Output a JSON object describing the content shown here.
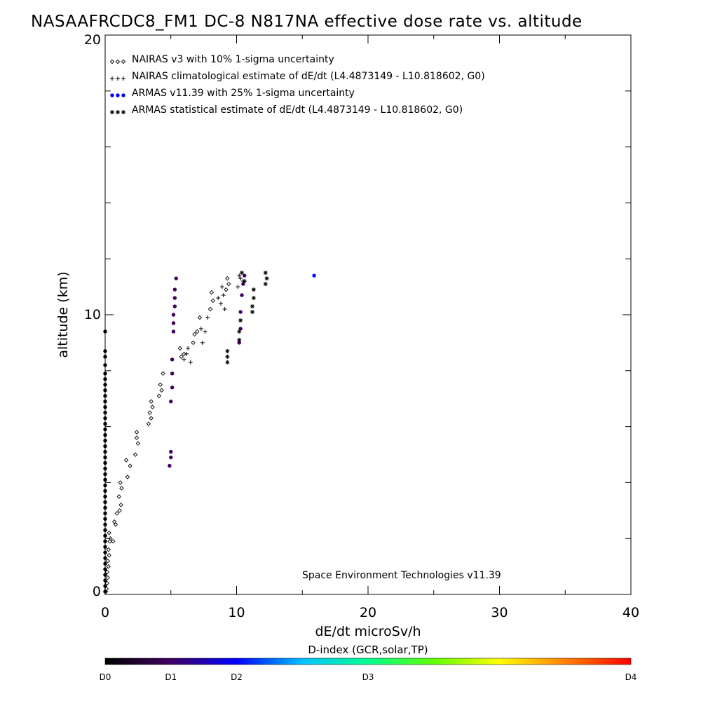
{
  "chart_data": {
    "type": "scatter",
    "title": "NASAAFRCDC8_FM1 DC-8   N817NA effective dose rate vs. altitude",
    "xlabel": "dE/dt microSv/h",
    "ylabel": "altitude (km)",
    "xlim": [
      0,
      40
    ],
    "ylim": [
      0,
      20
    ],
    "x_ticks": [
      "0",
      "10",
      "20",
      "30",
      "40"
    ],
    "y_ticks": [
      "0",
      "10",
      "20"
    ],
    "legend_placement": "top-left",
    "credit": "Space Environment Technologies v11.39",
    "colorbar": {
      "title": "D-index (GCR,solar,TP)",
      "labels": [
        {
          "text": "D0",
          "value": 0
        },
        {
          "text": "D1",
          "value": 0.25
        },
        {
          "text": "D2",
          "value": 0.5
        },
        {
          "text": "D3",
          "value": 1.0
        },
        {
          "text": "D4",
          "value": 2.0
        }
      ],
      "stops": [
        "#000000",
        "#400060",
        "#0000ff",
        "#00c0ff",
        "#00ff90",
        "#60ff00",
        "#ffff00",
        "#ff8000",
        "#ff0000"
      ]
    },
    "series": [
      {
        "name": "NAIRAS v3 with 10% 1-sigma uncertainty",
        "marker": "diamond",
        "color": "#000000",
        "points": [
          [
            0.05,
            0.1
          ],
          [
            0.1,
            0.2
          ],
          [
            0.15,
            0.4
          ],
          [
            0.2,
            0.6
          ],
          [
            0.15,
            0.8
          ],
          [
            0.25,
            1.0
          ],
          [
            0.2,
            1.2
          ],
          [
            0.3,
            1.4
          ],
          [
            0.25,
            1.6
          ],
          [
            0.35,
            1.9
          ],
          [
            0.4,
            2.0
          ],
          [
            0.3,
            2.2
          ],
          [
            0.8,
            2.5
          ],
          [
            0.7,
            2.6
          ],
          [
            0.9,
            2.9
          ],
          [
            0.6,
            1.9
          ],
          [
            1.1,
            3.0
          ],
          [
            1.2,
            3.2
          ],
          [
            1.05,
            3.5
          ],
          [
            1.25,
            3.8
          ],
          [
            1.15,
            4.0
          ],
          [
            1.7,
            4.2
          ],
          [
            1.9,
            4.6
          ],
          [
            1.6,
            4.8
          ],
          [
            2.3,
            5.0
          ],
          [
            2.5,
            5.4
          ],
          [
            2.4,
            5.6
          ],
          [
            2.4,
            5.8
          ],
          [
            3.3,
            6.1
          ],
          [
            3.5,
            6.3
          ],
          [
            3.4,
            6.5
          ],
          [
            3.6,
            6.7
          ],
          [
            3.5,
            6.9
          ],
          [
            4.1,
            7.1
          ],
          [
            4.3,
            7.3
          ],
          [
            4.2,
            7.5
          ],
          [
            4.4,
            7.9
          ],
          [
            5.8,
            8.5
          ],
          [
            6.0,
            8.6
          ],
          [
            5.7,
            8.8
          ],
          [
            6.7,
            9.0
          ],
          [
            6.8,
            9.3
          ],
          [
            7.0,
            9.4
          ],
          [
            7.2,
            9.9
          ],
          [
            8.0,
            10.2
          ],
          [
            8.2,
            10.5
          ],
          [
            8.1,
            10.8
          ],
          [
            9.2,
            10.9
          ],
          [
            9.4,
            11.1
          ],
          [
            9.3,
            11.3
          ]
        ]
      },
      {
        "name": "NAIRAS climatological estimate of dE/dt (L4.4873149 - L10.818602, G0)",
        "marker": "plus",
        "color": "#000000",
        "points": [
          [
            6.0,
            8.4
          ],
          [
            6.2,
            8.6
          ],
          [
            6.5,
            8.3
          ],
          [
            6.3,
            8.8
          ],
          [
            7.4,
            9.0
          ],
          [
            7.6,
            9.4
          ],
          [
            7.3,
            9.5
          ],
          [
            7.8,
            9.9
          ],
          [
            8.6,
            10.6
          ],
          [
            8.8,
            10.4
          ],
          [
            8.9,
            11.0
          ],
          [
            9.1,
            10.2
          ],
          [
            9.0,
            10.7
          ],
          [
            10.1,
            11.0
          ],
          [
            10.3,
            11.3
          ],
          [
            10.5,
            11.2
          ],
          [
            10.2,
            11.4
          ]
        ]
      },
      {
        "name": "ARMAS v11.39 with 25% 1-sigma uncertainty",
        "marker": "dot",
        "color": "#0000ff",
        "points": [
          [
            0.0,
            0.1,
            0
          ],
          [
            0.0,
            0.3,
            0
          ],
          [
            0.0,
            0.5,
            0
          ],
          [
            0.0,
            0.7,
            0
          ],
          [
            0.0,
            0.9,
            0
          ],
          [
            0.0,
            1.1,
            0
          ],
          [
            0.0,
            1.3,
            0
          ],
          [
            0.0,
            1.5,
            0
          ],
          [
            0.0,
            1.7,
            0
          ],
          [
            0.0,
            1.9,
            0
          ],
          [
            0.0,
            2.1,
            0
          ],
          [
            0.0,
            2.3,
            0
          ],
          [
            0.0,
            2.5,
            0
          ],
          [
            0.0,
            2.7,
            0
          ],
          [
            0.0,
            2.9,
            0
          ],
          [
            0.0,
            3.1,
            0
          ],
          [
            0.0,
            3.3,
            0
          ],
          [
            0.0,
            3.5,
            0
          ],
          [
            0.0,
            3.7,
            0
          ],
          [
            0.0,
            3.9,
            0
          ],
          [
            0.0,
            4.1,
            0
          ],
          [
            0.0,
            4.3,
            0
          ],
          [
            0.0,
            4.5,
            0
          ],
          [
            0.0,
            4.7,
            0
          ],
          [
            0.0,
            4.9,
            0
          ],
          [
            0.0,
            5.1,
            0
          ],
          [
            0.0,
            5.3,
            0
          ],
          [
            0.0,
            5.5,
            0
          ],
          [
            0.0,
            5.7,
            0
          ],
          [
            0.0,
            5.9,
            0
          ],
          [
            0.0,
            6.1,
            0
          ],
          [
            0.0,
            6.3,
            0
          ],
          [
            0.0,
            6.5,
            0
          ],
          [
            0.0,
            6.7,
            0
          ],
          [
            0.0,
            6.9,
            0
          ],
          [
            0.0,
            7.1,
            0
          ],
          [
            0.0,
            7.3,
            0
          ],
          [
            0.0,
            7.5,
            0
          ],
          [
            0.0,
            7.7,
            0
          ],
          [
            0.0,
            7.9,
            0
          ],
          [
            0.0,
            8.2,
            0
          ],
          [
            0.0,
            8.5,
            0
          ],
          [
            0.0,
            8.7,
            0
          ],
          [
            0.0,
            9.4,
            0
          ],
          [
            4.9,
            4.6,
            0.25
          ],
          [
            5.0,
            4.9,
            0.25
          ],
          [
            5.0,
            5.1,
            0.25
          ],
          [
            5.0,
            6.9,
            0.25
          ],
          [
            5.1,
            7.4,
            0.25
          ],
          [
            5.1,
            7.9,
            0.25
          ],
          [
            5.1,
            8.4,
            0.25
          ],
          [
            5.2,
            9.4,
            0.25
          ],
          [
            5.2,
            9.7,
            0.25
          ],
          [
            5.2,
            10.0,
            0.25
          ],
          [
            5.3,
            10.3,
            0.25
          ],
          [
            5.3,
            10.6,
            0.25
          ],
          [
            5.3,
            10.9,
            0.25
          ],
          [
            5.4,
            11.3,
            0.25
          ],
          [
            10.2,
            9.0,
            0.25
          ],
          [
            10.3,
            9.5,
            0.25
          ],
          [
            10.3,
            10.1,
            0.25
          ],
          [
            10.4,
            10.7,
            0.25
          ],
          [
            10.5,
            11.1,
            0.25
          ],
          [
            10.6,
            11.4,
            0.25
          ],
          [
            15.9,
            11.4,
            0.5
          ]
        ]
      },
      {
        "name": "ARMAS statistical estimate of dE/dt (L4.4873149 - L10.818602, G0)",
        "marker": "asterisk",
        "color": "#000000",
        "points": [
          [
            9.3,
            8.3
          ],
          [
            9.3,
            8.5
          ],
          [
            9.3,
            8.7
          ],
          [
            10.2,
            9.1
          ],
          [
            10.2,
            9.4
          ],
          [
            10.3,
            9.8
          ],
          [
            11.2,
            10.1
          ],
          [
            11.2,
            10.3
          ],
          [
            11.3,
            10.6
          ],
          [
            11.3,
            10.9
          ],
          [
            12.2,
            11.1
          ],
          [
            12.3,
            11.3
          ],
          [
            12.2,
            11.5
          ],
          [
            10.4,
            11.5
          ],
          [
            10.6,
            11.2
          ]
        ]
      }
    ]
  }
}
